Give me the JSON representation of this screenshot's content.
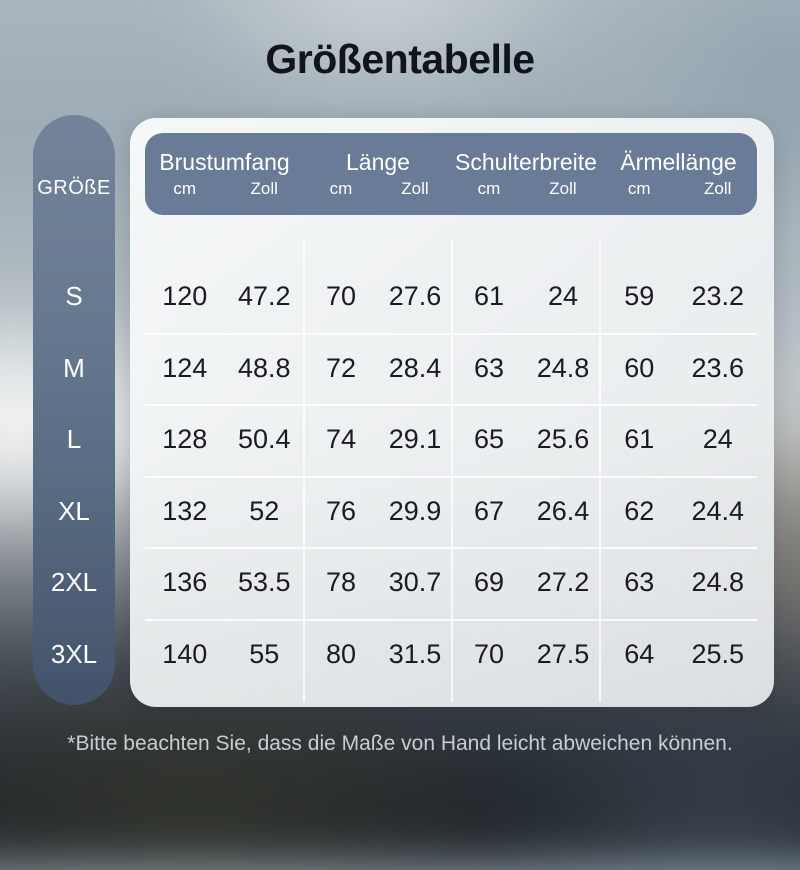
{
  "title": "Größentabelle",
  "size_column": {
    "header": "GRÖßE",
    "sizes": [
      "S",
      "M",
      "L",
      "XL",
      "2XL",
      "3XL"
    ]
  },
  "table": {
    "groups": [
      {
        "label": "Brustumfang",
        "units": [
          "cm",
          "Zoll"
        ]
      },
      {
        "label": "Länge",
        "units": [
          "cm",
          "Zoll"
        ]
      },
      {
        "label": "Schulterbreite",
        "units": [
          "cm",
          "Zoll"
        ]
      },
      {
        "label": "Ärmellänge",
        "units": [
          "cm",
          "Zoll"
        ]
      }
    ],
    "rows": [
      {
        "size": "S",
        "values": [
          "120",
          "47.2",
          "70",
          "27.6",
          "61",
          "24",
          "59",
          "23.2"
        ]
      },
      {
        "size": "M",
        "values": [
          "124",
          "48.8",
          "72",
          "28.4",
          "63",
          "24.8",
          "60",
          "23.6"
        ]
      },
      {
        "size": "L",
        "values": [
          "128",
          "50.4",
          "74",
          "29.1",
          "65",
          "25.6",
          "61",
          "24"
        ]
      },
      {
        "size": "XL",
        "values": [
          "132",
          "52",
          "76",
          "29.9",
          "67",
          "26.4",
          "62",
          "24.4"
        ]
      },
      {
        "size": "2XL",
        "values": [
          "136",
          "53.5",
          "78",
          "30.7",
          "69",
          "27.2",
          "63",
          "24.8"
        ]
      },
      {
        "size": "3XL",
        "values": [
          "140",
          "55",
          "80",
          "31.5",
          "70",
          "27.5",
          "64",
          "25.5"
        ]
      }
    ]
  },
  "footnote": "*Bitte beachten Sie, dass die Maße von Hand leicht abweichen können.",
  "colors": {
    "header_bg": "#697b97",
    "pill_top": "#72839a",
    "pill_bottom": "#42526a",
    "card_bg": "#f0f3f4",
    "title_text": "#111418",
    "table_text": "#1a1c1f",
    "header_text": "#ffffff",
    "footnote_text": "#c8cdd3"
  },
  "chart_data": {
    "type": "table",
    "title": "Größentabelle",
    "row_header": "GRÖßE",
    "columns": [
      "Brustumfang cm",
      "Brustumfang Zoll",
      "Länge cm",
      "Länge Zoll",
      "Schulterbreite cm",
      "Schulterbreite Zoll",
      "Ärmellänge cm",
      "Ärmellänge Zoll"
    ],
    "rows": [
      [
        "S",
        120,
        47.2,
        70,
        27.6,
        61,
        24,
        59,
        23.2
      ],
      [
        "M",
        124,
        48.8,
        72,
        28.4,
        63,
        24.8,
        60,
        23.6
      ],
      [
        "L",
        128,
        50.4,
        74,
        29.1,
        65,
        25.6,
        61,
        24
      ],
      [
        "XL",
        132,
        52,
        76,
        29.9,
        67,
        26.4,
        62,
        24.4
      ],
      [
        "2XL",
        136,
        53.5,
        78,
        30.7,
        69,
        27.2,
        63,
        24.8
      ],
      [
        "3XL",
        140,
        55,
        80,
        31.5,
        70,
        27.5,
        64,
        25.5
      ]
    ],
    "footnote": "*Bitte beachten Sie, dass die Maße von Hand leicht abweichen können."
  }
}
